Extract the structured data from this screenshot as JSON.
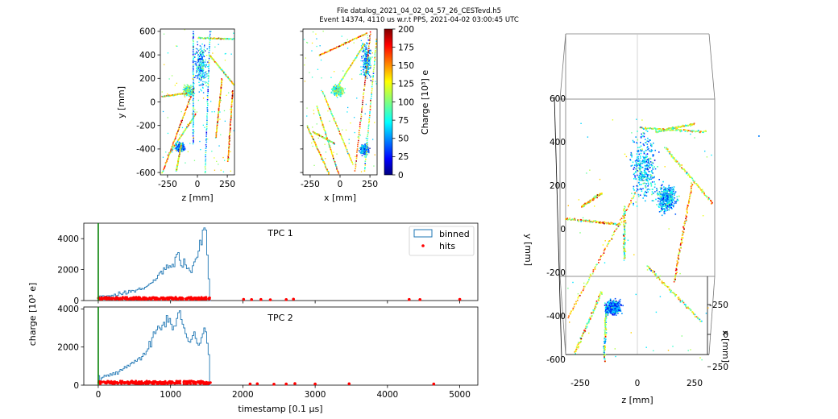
{
  "header": {
    "title_line1": "File datalog_2021_04_02_04_57_26_CESTevd.h5",
    "title_line2": "Event 14374, 4110 us w.r.t PPS, 2021-04-02 03:00:45 UTC"
  },
  "colors": {
    "histogram": "#1f77b4",
    "hits": "#ff0000",
    "trigger_line": "#008000",
    "colormap": [
      "#00007f",
      "#0000ff",
      "#007fff",
      "#00ffff",
      "#7fff7f",
      "#ffff00",
      "#ff7f00",
      "#ff0000",
      "#7f0000"
    ]
  },
  "chart_data": [
    {
      "id": "zy_projection",
      "type": "scatter",
      "xlabel": "z [mm]",
      "ylabel": "y [mm]",
      "xlim": [
        -310,
        310
      ],
      "ylim": [
        -620,
        620
      ],
      "xticks": [
        -250,
        0,
        250
      ],
      "yticks": [
        -600,
        -400,
        -200,
        0,
        200,
        400,
        600
      ],
      "tracks": [
        {
          "from": [
            -300,
            -600
          ],
          "to": [
            -60,
            50
          ],
          "charge": 140
        },
        {
          "from": [
            -250,
            -450
          ],
          "to": [
            -20,
            -100
          ],
          "charge": 110
        },
        {
          "from": [
            -180,
            -580
          ],
          "to": [
            -140,
            -350
          ],
          "charge": 120
        },
        {
          "from": [
            -40,
            -350
          ],
          "to": [
            -40,
            600
          ],
          "charge": 60
        },
        {
          "from": [
            60,
            -600
          ],
          "to": [
            100,
            600
          ],
          "charge": 70
        },
        {
          "from": [
            0,
            550
          ],
          "to": [
            300,
            540
          ],
          "charge": 110
        },
        {
          "from": [
            150,
            -300
          ],
          "to": [
            200,
            200
          ],
          "charge": 140
        },
        {
          "from": [
            250,
            -500
          ],
          "to": [
            290,
            100
          ],
          "charge": 150
        },
        {
          "from": [
            -300,
            50
          ],
          "to": [
            -100,
            80
          ],
          "charge": 120
        },
        {
          "from": [
            100,
            400
          ],
          "to": [
            300,
            150
          ],
          "charge": 115
        }
      ],
      "blobs": [
        {
          "center": [
            30,
            300
          ],
          "spread": [
            70,
            250
          ],
          "charge": 60
        },
        {
          "center": [
            -150,
            -380
          ],
          "spread": [
            50,
            50
          ],
          "charge": 50
        },
        {
          "center": [
            -80,
            100
          ],
          "spread": [
            60,
            60
          ],
          "charge": 95
        }
      ]
    },
    {
      "id": "xy_projection",
      "type": "scatter",
      "xlabel": "x [mm]",
      "ylabel": "",
      "xlim": [
        -310,
        310
      ],
      "ylim": [
        -620,
        620
      ],
      "xticks": [
        -250,
        0,
        250
      ],
      "yticks": [
        -600,
        -400,
        -200,
        0,
        200,
        400,
        600
      ],
      "tracks": [
        {
          "from": [
            -180,
            400
          ],
          "to": [
            220,
            590
          ],
          "charge": 145
        },
        {
          "from": [
            -200,
            -30
          ],
          "to": [
            -20,
            -600
          ],
          "charge": 120
        },
        {
          "from": [
            -150,
            90
          ],
          "to": [
            100,
            -520
          ],
          "charge": 115
        },
        {
          "from": [
            250,
            600
          ],
          "to": [
            120,
            -580
          ],
          "charge": 150
        },
        {
          "from": [
            200,
            500
          ],
          "to": [
            -50,
            100
          ],
          "charge": 110
        },
        {
          "from": [
            300,
            540
          ],
          "to": [
            200,
            -580
          ],
          "charge": 100
        },
        {
          "from": [
            -280,
            -200
          ],
          "to": [
            -100,
            -600
          ],
          "charge": 130
        },
        {
          "from": [
            -230,
            -250
          ],
          "to": [
            -50,
            -350
          ],
          "charge": 120
        }
      ],
      "blobs": [
        {
          "center": [
            220,
            350
          ],
          "spread": [
            60,
            220
          ],
          "charge": 60
        },
        {
          "center": [
            200,
            -400
          ],
          "spread": [
            50,
            60
          ],
          "charge": 55
        },
        {
          "center": [
            -20,
            100
          ],
          "spread": [
            70,
            60
          ],
          "charge": 95
        }
      ]
    },
    {
      "id": "colorbar",
      "type": "colorbar",
      "label": "Charge [10³] e",
      "range": [
        0,
        200
      ],
      "ticks": [
        0,
        25,
        50,
        75,
        100,
        125,
        150,
        175,
        200
      ]
    },
    {
      "id": "tpc1",
      "type": "area",
      "title": "TPC 1",
      "xlim": [
        -200,
        5250
      ],
      "ylim": [
        0,
        5000
      ],
      "yticks": [
        0,
        2000,
        4000
      ],
      "xticks": [
        0,
        1000,
        2000,
        3000,
        4000,
        5000
      ],
      "trigger_x": 0,
      "legend": {
        "placement": "top-right",
        "entries": [
          "binned",
          "hits"
        ]
      },
      "histogram": {
        "bin_width": 20,
        "start": 0,
        "values": [
          90,
          300,
          280,
          320,
          250,
          290,
          320,
          310,
          260,
          350,
          300,
          420,
          320,
          330,
          560,
          430,
          380,
          500,
          620,
          410,
          480,
          660,
          550,
          660,
          640,
          550,
          680,
          720,
          820,
          700,
          780,
          740,
          860,
          900,
          980,
          1080,
          1120,
          1160,
          1340,
          1300,
          1420,
          1640,
          1780,
          1900,
          1720,
          2120,
          2000,
          2300,
          2100,
          2250,
          2150,
          2350,
          2180,
          2800,
          3000,
          3100,
          2600,
          2250,
          2150,
          2700,
          2300,
          2050,
          2100,
          1920,
          1800,
          2250,
          2500,
          2700,
          2800,
          3200,
          3900,
          3600,
          4550,
          4700,
          4550,
          2950,
          1400,
          0
        ]
      },
      "hits": [
        [
          2010,
          80
        ],
        [
          2120,
          60
        ],
        [
          2250,
          70
        ],
        [
          2380,
          50
        ],
        [
          2600,
          60
        ],
        [
          2700,
          90
        ],
        [
          4300,
          70
        ],
        [
          4450,
          60
        ],
        [
          5000,
          80
        ]
      ]
    },
    {
      "id": "tpc2",
      "type": "area",
      "title": "TPC 2",
      "xlim": [
        -200,
        5250
      ],
      "ylim": [
        0,
        4100
      ],
      "yticks": [
        0,
        2000,
        4000
      ],
      "xticks": [
        0,
        1000,
        2000,
        3000,
        4000,
        5000
      ],
      "xticklabels": [
        "0",
        "1000",
        "2000",
        "3000",
        "4000",
        "5000"
      ],
      "xlabel": "timestamp [0.1 μs]",
      "trigger_x": 0,
      "histogram": {
        "bin_width": 20,
        "start": 0,
        "values": [
          500,
          150,
          380,
          420,
          520,
          460,
          540,
          470,
          600,
          520,
          650,
          560,
          700,
          580,
          720,
          830,
          780,
          860,
          980,
          900,
          1050,
          1000,
          1120,
          1200,
          1150,
          1300,
          1250,
          1380,
          1450,
          1320,
          1500,
          1680,
          1600,
          1780,
          1900,
          2300,
          2000,
          2500,
          2800,
          2700,
          2900,
          3100,
          3000,
          2900,
          3150,
          3300,
          3050,
          3650,
          3300,
          3500,
          3200,
          2900,
          3100,
          3100,
          3500,
          3800,
          3900,
          3450,
          3200,
          3000,
          2700,
          2500,
          2300,
          2250,
          2400,
          2600,
          2800,
          2450,
          2200,
          2100,
          2200,
          2500,
          2700,
          3000,
          2800,
          2200,
          1600,
          0
        ]
      },
      "hits": [
        [
          2100,
          60
        ],
        [
          2200,
          70
        ],
        [
          2430,
          50
        ],
        [
          2600,
          60
        ],
        [
          2720,
          80
        ],
        [
          3000,
          60
        ],
        [
          3470,
          70
        ],
        [
          4640,
          60
        ]
      ]
    },
    {
      "id": "view3d",
      "type": "scatter",
      "xlabel": "z [mm]",
      "ylabel": "y [mm]",
      "zlabel": "x [mm]",
      "xticks": [
        -250,
        0,
        250
      ],
      "yticks": [
        -600,
        -400,
        -200,
        0,
        200,
        400,
        600
      ],
      "zticks": [
        -250,
        0,
        250
      ]
    }
  ],
  "shared": {
    "ylabel": "charge [10³ e]"
  }
}
